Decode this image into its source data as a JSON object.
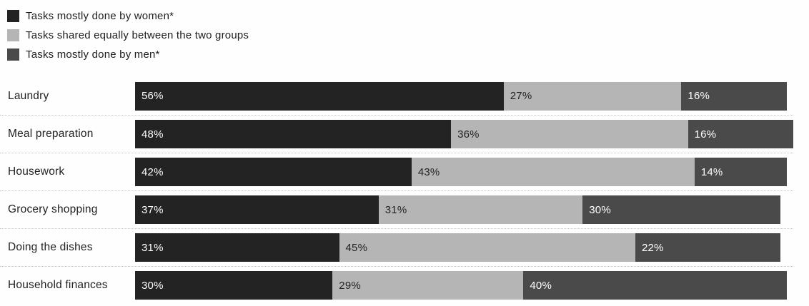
{
  "chart_data": {
    "type": "bar",
    "orientation": "horizontal",
    "stacked": true,
    "title": "",
    "categories": [
      "Laundry",
      "Meal preparation",
      "Housework",
      "Grocery shopping",
      "Doing the dishes",
      "Household finances"
    ],
    "series": [
      {
        "name": "Tasks mostly done by women*",
        "color": "#232323",
        "label_color": "#ffffff",
        "values": [
          56,
          48,
          42,
          37,
          31,
          30
        ]
      },
      {
        "name": "Tasks shared equally between the two groups",
        "color": "#b5b5b5",
        "label_color": "#222222",
        "values": [
          27,
          36,
          43,
          31,
          45,
          29
        ]
      },
      {
        "name": "Tasks mostly done by men*",
        "color": "#4a4a4a",
        "label_color": "#ffffff",
        "values": [
          16,
          16,
          14,
          30,
          22,
          40
        ]
      }
    ],
    "value_suffix": "%",
    "xlim": [
      0,
      100
    ],
    "legend_position": "top-left",
    "grid": false,
    "background": "#ffffff",
    "separator_color": "#c6c6c6"
  }
}
